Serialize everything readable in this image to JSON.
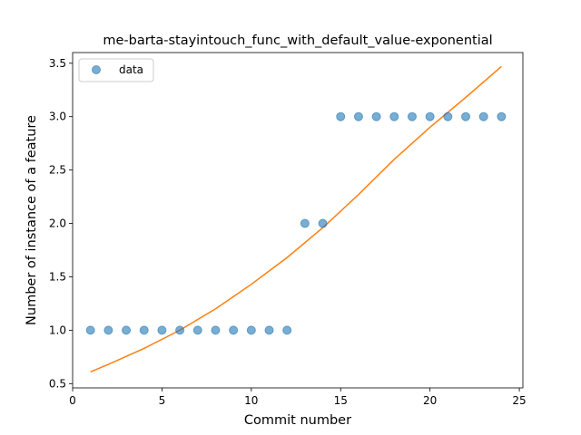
{
  "chart_data": {
    "type": "scatter",
    "title": "me-barta-stayintouch_func_with_default_value-exponential",
    "xlabel": "Commit number",
    "ylabel": "Number of instance of a feature",
    "xlim": [
      0,
      25.2
    ],
    "ylim": [
      0.46,
      3.6
    ],
    "xticks": [
      0,
      5,
      10,
      15,
      20,
      25
    ],
    "yticks": [
      0.5,
      1.0,
      1.5,
      2.0,
      2.5,
      3.0,
      3.5
    ],
    "xtick_labels": [
      "0",
      "5",
      "10",
      "15",
      "20",
      "25"
    ],
    "ytick_labels": [
      "0.5",
      "1.0",
      "1.5",
      "2.0",
      "2.5",
      "3.0",
      "3.5"
    ],
    "grid": false,
    "legend_position": "top-left",
    "series": [
      {
        "name": "data",
        "kind": "scatter",
        "color": "#1f77b4",
        "x": [
          1,
          2,
          3,
          4,
          5,
          6,
          7,
          8,
          9,
          10,
          11,
          12,
          13,
          14,
          15,
          16,
          17,
          18,
          19,
          20,
          21,
          22,
          23,
          24
        ],
        "y": [
          1,
          1,
          1,
          1,
          1,
          1,
          1,
          1,
          1,
          1,
          1,
          1,
          2,
          2,
          3,
          3,
          3,
          3,
          3,
          3,
          3,
          3,
          3,
          3
        ]
      },
      {
        "kind": "line",
        "color": "#ff7f0e",
        "x": [
          1,
          2,
          4,
          6,
          8,
          10,
          12,
          14,
          16,
          18,
          20,
          22,
          24
        ],
        "y": [
          0.61,
          0.68,
          0.83,
          1.0,
          1.2,
          1.43,
          1.68,
          1.96,
          2.27,
          2.6,
          2.9,
          3.18,
          3.47
        ]
      }
    ]
  }
}
